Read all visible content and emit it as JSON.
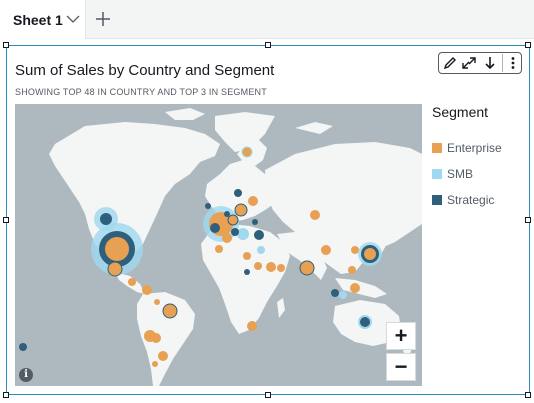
{
  "tabs": [
    {
      "label": "Sheet 1"
    }
  ],
  "tab_icons": {
    "chevron": "chevron-down-icon",
    "add": "plus-icon"
  },
  "toolbar": {
    "icons": [
      "pencil-icon",
      "expand-icon",
      "download-icon",
      "more-vertical-icon"
    ]
  },
  "visual": {
    "title": "Sum of Sales by Country and Segment",
    "subtitle": "SHOWING TOP 48 IN COUNTRY AND TOP 3 IN SEGMENT"
  },
  "legend": {
    "title": "Segment",
    "items": [
      {
        "label": "Enterprise",
        "color": "#e8a052"
      },
      {
        "label": "SMB",
        "color": "#9fd8ef"
      },
      {
        "label": "Strategic",
        "color": "#2e5f7c"
      }
    ]
  },
  "map_controls": {
    "zoom_in": "+",
    "zoom_out": "−",
    "info": "i"
  },
  "colors": {
    "accent": "#2a8fbd",
    "map_water": "#aeb9bf",
    "map_land": "#f4f5f5"
  }
}
